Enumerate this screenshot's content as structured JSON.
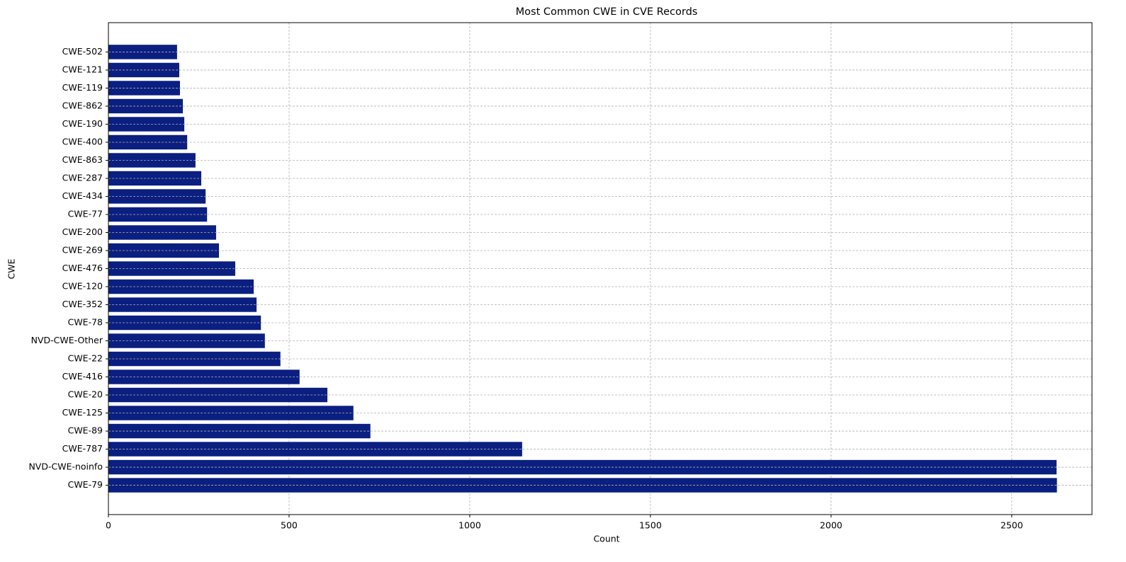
{
  "chart_data": {
    "type": "barh",
    "title": "Most Common CWE in CVE Records",
    "x_label": "Count",
    "y_label": "CWE",
    "categories": [
      "CWE-79",
      "NVD-CWE-noinfo",
      "CWE-787",
      "CWE-89",
      "CWE-125",
      "CWE-20",
      "CWE-416",
      "CWE-22",
      "NVD-CWE-Other",
      "CWE-78",
      "CWE-352",
      "CWE-120",
      "CWE-476",
      "CWE-269",
      "CWE-200",
      "CWE-77",
      "CWE-434",
      "CWE-287",
      "CWE-863",
      "CWE-400",
      "CWE-190",
      "CWE-862",
      "CWE-119",
      "CWE-121",
      "CWE-502"
    ],
    "values": [
      2625,
      2624,
      1145,
      725,
      678,
      606,
      529,
      476,
      433,
      422,
      410,
      402,
      351,
      306,
      298,
      273,
      269,
      257,
      241,
      218,
      210,
      206,
      198,
      196,
      190
    ],
    "color": "#0a1f80",
    "xlim": [
      0,
      2722
    ],
    "xticks": [
      0,
      500,
      1000,
      1500,
      2000,
      2500
    ],
    "grid": true
  }
}
